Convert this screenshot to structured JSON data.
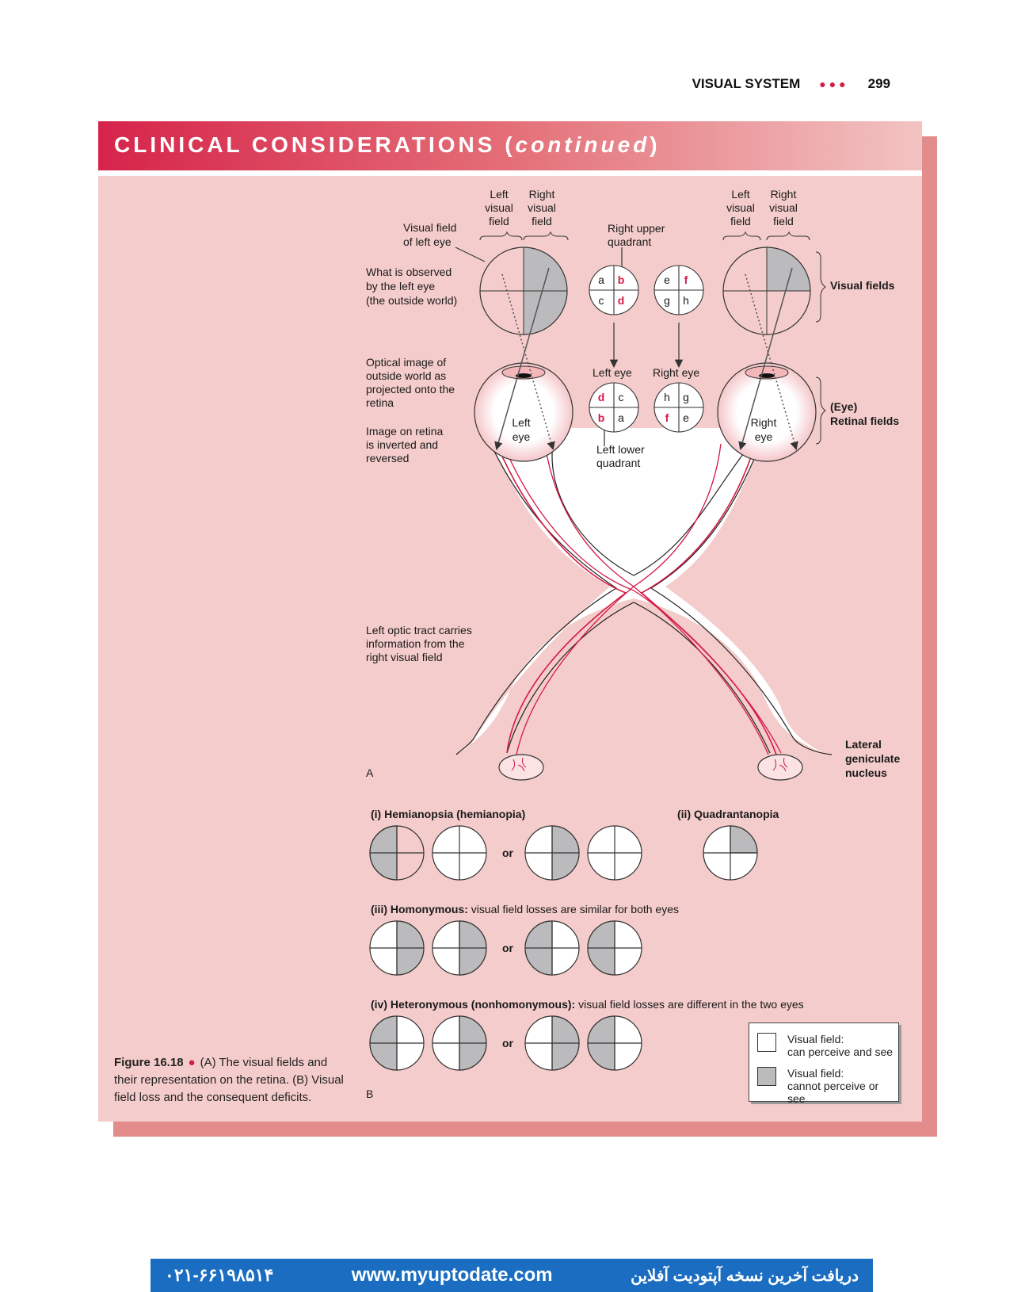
{
  "header": {
    "section": "VISUAL SYSTEM",
    "dots": "●●●",
    "page_number": "299"
  },
  "banner": {
    "title": "CLINICAL CONSIDERATIONS (",
    "title_italic": "continued",
    "title_close": ")"
  },
  "part_a": {
    "label": "A",
    "field_headers": {
      "left1": "Left",
      "left2": "visual",
      "left3": "field",
      "right1": "Right",
      "right2": "visual",
      "right3": "field"
    },
    "visual_field_left_eye": [
      "Visual field",
      "of left eye"
    ],
    "what_observed": [
      "What is observed",
      "by the left eye",
      "(the outside world)"
    ],
    "optical_image": [
      "Optical image of",
      "outside world as",
      "projected onto the",
      "retina"
    ],
    "image_on_retina": [
      "Image on retina",
      "is inverted and",
      "reversed"
    ],
    "left_optic_tract": [
      "Left optic tract carries",
      "information from the",
      "right visual field"
    ],
    "right_upper_quadrant": [
      "Right upper",
      "quadrant"
    ],
    "left_lower_quadrant": [
      "Left lower",
      "quadrant"
    ],
    "left_eye_small": "Left eye",
    "right_eye_small": "Right eye",
    "left_eye_label": [
      "Left",
      "eye"
    ],
    "right_eye_label": [
      "Right",
      "eye"
    ],
    "visual_fields": "Visual fields",
    "retinal_fields": [
      "(Eye)",
      "Retinal fields"
    ],
    "lgn": [
      "Lateral",
      "geniculate",
      "nucleus"
    ],
    "quad_left_top": [
      "a",
      "b",
      "c",
      "d"
    ],
    "quad_right_top": [
      "e",
      "f",
      "g",
      "h"
    ],
    "quad_left_bottom": [
      "d",
      "c",
      "b",
      "a"
    ],
    "quad_right_bottom": [
      "h",
      "g",
      "f",
      "e"
    ]
  },
  "part_b": {
    "label": "B",
    "hemianopsia": "(i) Hemianopsia (hemianopia)",
    "quadrantanopia": "(ii) Quadrantanopia",
    "homonymous_bold": "(iii) Homonymous:",
    "homonymous_rest": " visual field losses are similar for both eyes",
    "heteronymous_bold": "(iv) Heteronymous (nonhomonymous):",
    "heteronymous_rest": " visual field losses are different in the two eyes",
    "or": "or"
  },
  "legend": {
    "can": [
      "Visual field:",
      "can perceive and see"
    ],
    "cannot": [
      "Visual field:",
      "cannot perceive or see"
    ]
  },
  "caption": {
    "label": "Figure 16.18",
    "text": "(A) The visual fields and their representation on the retina. (B) Visual field loss and the consequent deficits."
  },
  "footer": {
    "phone": "۰۲۱-۶۶۱۹۸۵۱۴",
    "url": "www.myuptodate.com",
    "persian": "دریافت آخرین نسخه آپتودیت آفلاین"
  },
  "colors": {
    "accent": "#d41a45",
    "panel": "#f4cccb",
    "gray": "#bbbbbd",
    "footer": "#1a6dc0"
  }
}
